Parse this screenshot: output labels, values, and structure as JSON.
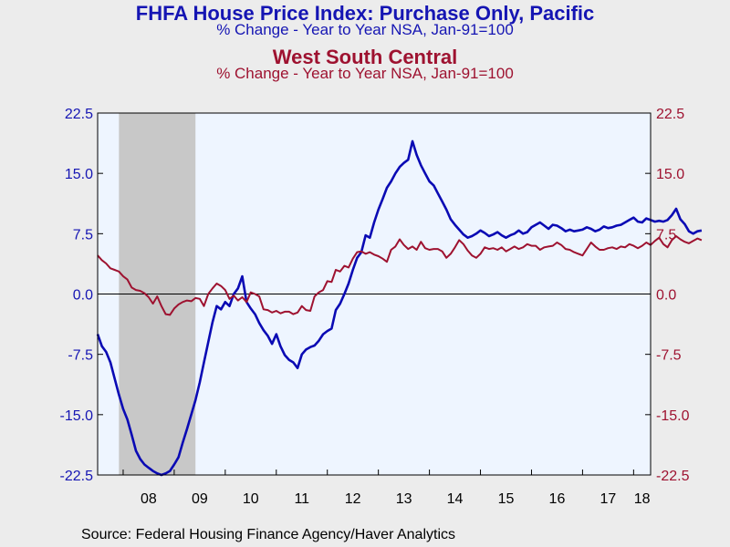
{
  "title": "FHFA House Price Index: Purchase Only, Pacific",
  "subtitle": "% Change - Year to Year    NSA, Jan-91=100",
  "title2": "West South Central",
  "subtitle2": "% Change - Year to Year    NSA, Jan-91=100",
  "source": "Source:  Federal Housing Finance Agency/Haver Analytics",
  "colors": {
    "pacific": "#0a0ab4",
    "wsc": "#9e1230",
    "plot_bg": "#eef5ff",
    "recession": "#c8c8c8",
    "page_bg": "#ececec"
  },
  "chart_data": {
    "type": "line",
    "x_start": "2007-07",
    "x_end": "2018-05",
    "frequency": "monthly",
    "xticklabels": [
      "08",
      "09",
      "10",
      "11",
      "12",
      "13",
      "14",
      "15",
      "16",
      "17",
      "18"
    ],
    "yticks_left": [
      "22.5",
      "15.0",
      "7.5",
      "0.0",
      "-7.5",
      "-15.0",
      "-22.5"
    ],
    "yticks_right": [
      "22.5",
      "15.0",
      "7.5",
      "0.0",
      "-7.5",
      "-15.0",
      "-22.5"
    ],
    "ylim": [
      -22.5,
      22.5
    ],
    "recession": [
      "2007-12",
      "2009-06"
    ],
    "series": [
      {
        "name": "Pacific",
        "axis": "left",
        "values": [
          -5.0,
          -6.5,
          -7.2,
          -8.5,
          -10.5,
          -12.5,
          -14.3,
          -15.6,
          -17.5,
          -19.5,
          -20.5,
          -21.2,
          -21.6,
          -22.0,
          -22.3,
          -22.5,
          -22.3,
          -22.0,
          -21.2,
          -20.3,
          -18.5,
          -16.8,
          -15.0,
          -13.2,
          -11.0,
          -8.5,
          -6.0,
          -3.5,
          -1.5,
          -1.9,
          -1.0,
          -1.5,
          0.0,
          0.7,
          2.2,
          -1.0,
          -1.8,
          -2.5,
          -3.6,
          -4.5,
          -5.2,
          -6.2,
          -5.0,
          -6.5,
          -7.6,
          -8.2,
          -8.5,
          -9.2,
          -7.5,
          -6.9,
          -6.6,
          -6.4,
          -5.8,
          -5.0,
          -4.6,
          -4.3,
          -2.0,
          -1.2,
          0.0,
          1.3,
          3.0,
          4.5,
          5.2,
          7.3,
          7.0,
          8.9,
          10.5,
          11.8,
          13.2,
          14.0,
          15.0,
          15.8,
          16.3,
          16.7,
          19.0,
          17.3,
          16.0,
          15.0,
          14.0,
          13.5,
          12.5,
          11.5,
          10.5,
          9.3,
          8.6,
          8.0,
          7.4,
          7.0,
          7.2,
          7.5,
          7.9,
          7.6,
          7.2,
          7.4,
          7.7,
          7.3,
          7.0,
          7.3,
          7.5,
          7.9,
          7.5,
          7.7,
          8.3,
          8.6,
          8.9,
          8.5,
          8.1,
          8.6,
          8.5,
          8.2,
          7.8,
          8.0,
          7.8,
          7.9,
          8.0,
          8.3,
          8.1,
          7.8,
          8.0,
          8.4,
          8.2,
          8.3,
          8.5,
          8.6,
          8.9,
          9.2,
          9.5,
          9.0,
          8.9,
          9.4,
          9.2,
          9.0,
          9.1,
          9.0,
          9.2,
          9.8,
          10.6,
          9.3,
          8.7,
          7.8,
          7.5,
          7.8,
          7.9
        ]
      },
      {
        "name": "West South Central",
        "axis": "right",
        "values": [
          4.8,
          4.2,
          3.8,
          3.2,
          3.0,
          2.8,
          2.2,
          1.8,
          0.8,
          0.5,
          0.4,
          0.1,
          -0.4,
          -1.2,
          -0.3,
          -1.5,
          -2.5,
          -2.6,
          -1.8,
          -1.3,
          -1.0,
          -0.8,
          -0.9,
          -0.5,
          -0.6,
          -1.5,
          0.0,
          0.7,
          1.3,
          1.0,
          0.5,
          -0.6,
          -0.2,
          -0.8,
          -0.4,
          -1.0,
          0.2,
          0.0,
          -0.3,
          -1.9,
          -2.0,
          -2.3,
          -2.1,
          -2.4,
          -2.2,
          -2.2,
          -2.5,
          -2.3,
          -1.5,
          -2.0,
          -2.1,
          -0.3,
          0.2,
          0.5,
          1.6,
          1.5,
          3.0,
          2.8,
          3.5,
          3.3,
          4.4,
          5.2,
          5.3,
          5.0,
          5.2,
          4.9,
          4.7,
          4.4,
          4.0,
          5.5,
          5.9,
          6.8,
          6.1,
          5.6,
          5.9,
          5.5,
          6.5,
          5.7,
          5.5,
          5.6,
          5.6,
          5.3,
          4.5,
          5.0,
          5.8,
          6.7,
          6.2,
          5.4,
          4.8,
          4.5,
          5.0,
          5.8,
          5.6,
          5.7,
          5.5,
          5.8,
          5.3,
          5.6,
          5.9,
          5.6,
          5.8,
          6.2,
          6.0,
          6.0,
          5.5,
          5.8,
          5.9,
          6.0,
          6.4,
          6.1,
          5.6,
          5.5,
          5.2,
          5.0,
          4.8,
          5.6,
          6.4,
          5.9,
          5.5,
          5.5,
          5.7,
          5.8,
          5.6,
          5.9,
          5.8,
          6.2,
          6.0,
          5.7,
          6.0,
          6.4,
          6.1,
          6.6,
          7.0,
          6.2,
          5.8,
          6.7,
          7.2,
          6.8,
          6.5,
          6.3,
          6.6,
          6.9,
          6.7
        ]
      }
    ]
  }
}
